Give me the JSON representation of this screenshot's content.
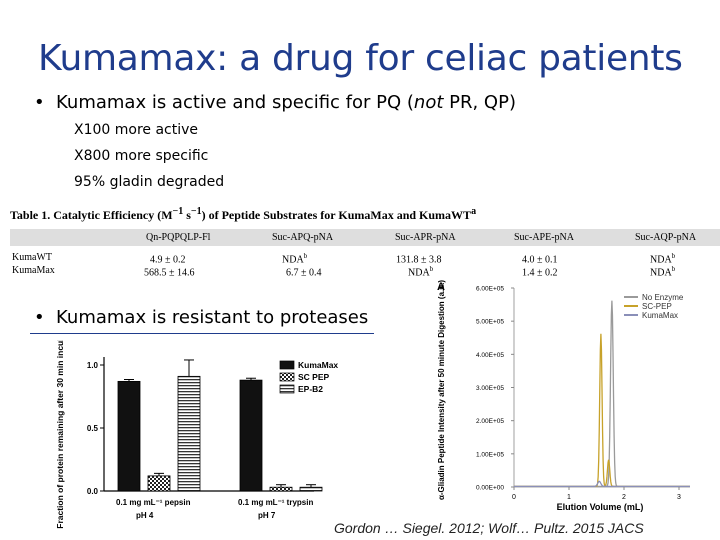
{
  "title": "Kumamax: a drug for celiac patients",
  "bullet1": {
    "pre": "Kumamax is active and specific for PQ (",
    "em": "not",
    "post": " PR, QP)"
  },
  "sub_items": [
    "X100 more active",
    "X800 more specific",
    "95% gladin degraded"
  ],
  "table": {
    "caption_pre": "Table 1. Catalytic Efficiency (M",
    "caption_exp1": "−1",
    "caption_mid": " s",
    "caption_exp2": "−1",
    "caption_post": ") of Peptide Substrates for KumaMax and KumaWT",
    "caption_sup": "a",
    "headers": [
      "Qn-PQPQLP-Fl",
      "Suc-APQ-pNA",
      "Suc-APR-pNA",
      "Suc-APE-pNA",
      "Suc-AQP-pNA"
    ],
    "rows": [
      {
        "label": "KumaWT",
        "cells": [
          "4.9 ± 0.2",
          "NDA",
          "131.8 ± 3.8",
          "4.0 ± 0.1",
          "NDA"
        ],
        "sups": [
          "",
          "b",
          "",
          "",
          "b"
        ]
      },
      {
        "label": "KumaMax",
        "cells": [
          "568.5 ± 14.6",
          "6.7 ± 0.4",
          "NDA",
          "1.4 ± 0.2",
          "NDA"
        ],
        "sups": [
          "",
          "",
          "b",
          "",
          "b"
        ]
      }
    ]
  },
  "bullet2": "Kumamax is resistant to proteases",
  "bar_chart": {
    "chart_data": {
      "type": "bar",
      "ylabel": "Fraction of protein remaining after 30 min incubation",
      "ylim": [
        0,
        1.0
      ],
      "yticks": [
        "0.0",
        "0.5",
        "1.0"
      ],
      "categories": [
        "0.1 mg mL⁻¹ pepsin",
        "0.1 mg mL⁻¹ trypsin"
      ],
      "group_labels": [
        "pH 4",
        "pH 7"
      ],
      "series": [
        {
          "name": "KumaMax",
          "values": [
            0.87,
            0.88
          ],
          "color": "#111111"
        },
        {
          "name": "SC PEP",
          "values": [
            0.12,
            0.03
          ],
          "color": "checker"
        },
        {
          "name": "EP-B2",
          "values": [
            0.91,
            0.03
          ],
          "color": "stripes"
        }
      ]
    }
  },
  "line_chart": {
    "panel_label": "A",
    "chart_data": {
      "type": "line",
      "xlabel": "Elution Volume (mL)",
      "ylabel": "α-Gliadin Peptide Intensity after 50 minute Digestion (a.u.)",
      "xlim": [
        0,
        3.2
      ],
      "ylim": [
        0,
        600000
      ],
      "xticks": [
        "0",
        "1",
        "2",
        "3"
      ],
      "yticks": [
        "0.00E+00",
        "1.00E+05",
        "2.00E+05",
        "3.00E+05",
        "4.00E+05",
        "5.00E+05",
        "6.00E+05"
      ],
      "legend": "top-right",
      "series": [
        {
          "name": "No Enzyme",
          "color": "#9a9a9a",
          "peaks": [
            {
              "x": 1.78,
              "y": 560000
            }
          ]
        },
        {
          "name": "SC-PEP",
          "color": "#c7a22a",
          "peaks": [
            {
              "x": 1.58,
              "y": 460000
            },
            {
              "x": 1.72,
              "y": 80000
            }
          ]
        },
        {
          "name": "KumaMax",
          "color": "#8a8fb8",
          "peaks": [
            {
              "x": 1.55,
              "y": 15000
            }
          ]
        }
      ]
    }
  },
  "citation": "Gordon … Siegel. 2012; Wolf… Pultz. 2015 JACS"
}
